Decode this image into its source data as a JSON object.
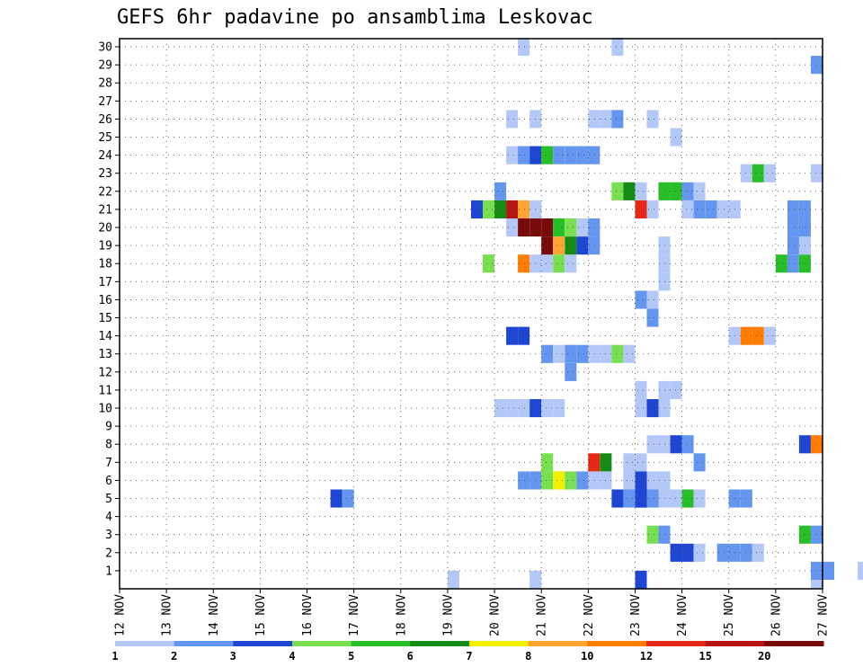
{
  "chart_data": {
    "type": "heatmap",
    "title": "GEFS 6hr padavine po ansamblima Leskovac",
    "y_ticks": [
      "1",
      "2",
      "3",
      "4",
      "5",
      "6",
      "7",
      "8",
      "9",
      "10",
      "11",
      "12",
      "13",
      "14",
      "15",
      "16",
      "17",
      "18",
      "19",
      "20",
      "21",
      "22",
      "23",
      "24",
      "25",
      "26",
      "27",
      "28",
      "29",
      "30"
    ],
    "x_ticks": [
      "12 NOV",
      "13 NOV",
      "14 NOV",
      "15 NOV",
      "16 NOV",
      "17 NOV",
      "18 NOV",
      "19 NOV",
      "20 NOV",
      "21 NOV",
      "22 NOV",
      "23 NOV",
      "24 NOV",
      "25 NOV",
      "26 NOV",
      "27 NOV"
    ],
    "legend_labels": [
      "1",
      "2",
      "3",
      "4",
      "5",
      "6",
      "7",
      "8",
      "10",
      "12",
      "15",
      "20"
    ],
    "legend_colors": [
      "#b4c8f8",
      "#6496f0",
      "#1e46d2",
      "#78e050",
      "#28be28",
      "#148c14",
      "#f0f000",
      "#ffa532",
      "#ff7d00",
      "#e62814",
      "#b41414",
      "#780a0a"
    ],
    "class_colors": [
      "#b4c8f8",
      "#6496f0",
      "#1e46d2",
      "#78e050",
      "#28be28",
      "#148c14",
      "#f0f000",
      "#ffa532",
      "#ff7d00",
      "#e62814",
      "#b41414",
      "#780a0a"
    ],
    "grid": true,
    "time_steps_per_day": 4,
    "x_start": "12 NOV",
    "cells": [
      [
        0.5,
        28,
        0
      ],
      [
        0.5,
        35,
        0
      ],
      [
        0.5,
        44,
        2
      ],
      [
        0.5,
        59,
        0
      ],
      [
        1,
        59,
        1
      ],
      [
        1,
        60,
        1
      ],
      [
        1,
        63,
        0
      ],
      [
        1,
        64,
        0
      ],
      [
        1,
        66,
        1
      ],
      [
        1,
        67,
        2
      ],
      [
        1,
        68,
        2
      ],
      [
        1,
        69,
        0
      ],
      [
        2,
        47,
        2
      ],
      [
        2,
        48,
        2
      ],
      [
        2,
        49,
        0
      ],
      [
        2,
        51,
        1
      ],
      [
        2,
        52,
        1
      ],
      [
        2,
        53,
        1
      ],
      [
        2,
        54,
        0
      ],
      [
        3,
        45,
        3
      ],
      [
        3,
        46,
        1
      ],
      [
        3,
        58,
        4
      ],
      [
        3,
        59,
        1
      ],
      [
        5,
        44,
        2
      ],
      [
        5,
        45,
        1
      ],
      [
        5,
        48,
        4
      ],
      [
        5,
        49,
        0
      ],
      [
        5,
        52,
        1
      ],
      [
        5,
        53,
        1
      ],
      [
        5,
        18,
        2
      ],
      [
        5,
        19,
        1
      ],
      [
        5,
        42,
        2
      ],
      [
        5,
        43,
        1
      ],
      [
        5,
        44,
        2
      ],
      [
        5,
        46,
        0
      ],
      [
        5,
        47,
        0
      ],
      [
        6,
        34,
        1
      ],
      [
        6,
        35,
        1
      ],
      [
        6,
        36,
        3
      ],
      [
        6,
        37,
        6
      ],
      [
        6,
        38,
        3
      ],
      [
        6,
        39,
        1
      ],
      [
        6,
        40,
        0
      ],
      [
        6,
        41,
        0
      ],
      [
        6,
        43,
        0
      ],
      [
        6,
        44,
        2
      ],
      [
        6,
        45,
        0
      ],
      [
        6,
        46,
        0
      ],
      [
        7,
        36,
        3
      ],
      [
        7,
        40,
        9
      ],
      [
        7,
        41,
        5
      ],
      [
        7,
        43,
        0
      ],
      [
        7,
        44,
        0
      ],
      [
        8,
        45,
        0
      ],
      [
        8,
        46,
        0
      ],
      [
        8,
        47,
        2
      ],
      [
        8,
        48,
        1
      ],
      [
        8,
        58,
        2
      ],
      [
        8,
        59,
        8
      ],
      [
        7,
        49,
        1
      ],
      [
        10,
        32,
        0
      ],
      [
        10,
        33,
        0
      ],
      [
        10,
        34,
        0
      ],
      [
        10,
        35,
        2
      ],
      [
        10,
        36,
        0
      ],
      [
        10,
        37,
        0
      ],
      [
        10,
        44,
        0
      ],
      [
        10,
        45,
        2
      ],
      [
        10,
        46,
        0
      ],
      [
        11,
        44,
        0
      ],
      [
        11,
        46,
        0
      ],
      [
        11,
        47,
        0
      ],
      [
        12,
        38,
        1
      ],
      [
        13,
        36,
        1
      ],
      [
        13,
        37,
        0
      ],
      [
        13,
        38,
        1
      ],
      [
        13,
        39,
        1
      ],
      [
        13,
        40,
        0
      ],
      [
        13,
        41,
        0
      ],
      [
        13,
        42,
        3
      ],
      [
        13,
        43,
        0
      ],
      [
        14,
        33,
        2
      ],
      [
        14,
        34,
        2
      ],
      [
        14,
        52,
        0
      ],
      [
        14,
        53,
        8
      ],
      [
        14,
        54,
        8
      ],
      [
        14,
        55,
        0
      ],
      [
        15,
        45,
        1
      ],
      [
        16,
        44,
        1
      ],
      [
        16,
        45,
        0
      ],
      [
        17,
        46,
        0
      ],
      [
        18,
        31,
        3
      ],
      [
        18,
        34,
        8
      ],
      [
        18,
        35,
        0
      ],
      [
        18,
        36,
        0
      ],
      [
        18,
        37,
        3
      ],
      [
        18,
        38,
        0
      ],
      [
        18,
        46,
        0
      ],
      [
        18,
        56,
        4
      ],
      [
        18,
        57,
        1
      ],
      [
        18,
        58,
        4
      ],
      [
        19,
        36,
        11
      ],
      [
        19,
        37,
        7
      ],
      [
        19,
        38,
        5
      ],
      [
        19,
        39,
        2
      ],
      [
        19,
        40,
        1
      ],
      [
        19,
        46,
        0
      ],
      [
        19,
        57,
        1
      ],
      [
        19,
        58,
        0
      ],
      [
        20,
        33,
        0
      ],
      [
        20,
        34,
        11
      ],
      [
        20,
        35,
        11
      ],
      [
        20,
        36,
        11
      ],
      [
        20,
        37,
        4
      ],
      [
        20,
        38,
        3
      ],
      [
        20,
        39,
        0
      ],
      [
        20,
        40,
        1
      ],
      [
        20,
        57,
        1
      ],
      [
        20,
        58,
        1
      ],
      [
        21,
        30,
        2
      ],
      [
        21,
        31,
        3
      ],
      [
        21,
        32,
        5
      ],
      [
        21,
        33,
        10
      ],
      [
        21,
        34,
        7
      ],
      [
        21,
        35,
        0
      ],
      [
        21,
        44,
        9
      ],
      [
        21,
        45,
        0
      ],
      [
        21,
        48,
        0
      ],
      [
        21,
        49,
        1
      ],
      [
        21,
        50,
        1
      ],
      [
        21,
        51,
        0
      ],
      [
        21,
        52,
        0
      ],
      [
        21,
        57,
        1
      ],
      [
        21,
        58,
        1
      ],
      [
        22,
        32,
        1
      ],
      [
        22,
        42,
        3
      ],
      [
        22,
        43,
        5
      ],
      [
        22,
        44,
        0
      ],
      [
        22,
        46,
        4
      ],
      [
        22,
        47,
        4
      ],
      [
        22,
        48,
        1
      ],
      [
        22,
        49,
        0
      ],
      [
        23,
        53,
        0
      ],
      [
        23,
        54,
        4
      ],
      [
        23,
        55,
        0
      ],
      [
        23,
        59,
        0
      ],
      [
        24,
        33,
        0
      ],
      [
        24,
        34,
        1
      ],
      [
        24,
        35,
        2
      ],
      [
        24,
        36,
        4
      ],
      [
        24,
        37,
        1
      ],
      [
        24,
        38,
        1
      ],
      [
        24,
        39,
        1
      ],
      [
        24,
        40,
        1
      ],
      [
        25,
        47,
        0
      ],
      [
        26,
        33,
        0
      ],
      [
        26,
        35,
        0
      ],
      [
        26,
        40,
        0
      ],
      [
        26,
        41,
        0
      ],
      [
        26,
        42,
        1
      ],
      [
        26,
        45,
        0
      ],
      [
        29,
        59,
        1
      ],
      [
        30,
        34,
        0
      ],
      [
        30,
        42,
        0
      ]
    ]
  }
}
